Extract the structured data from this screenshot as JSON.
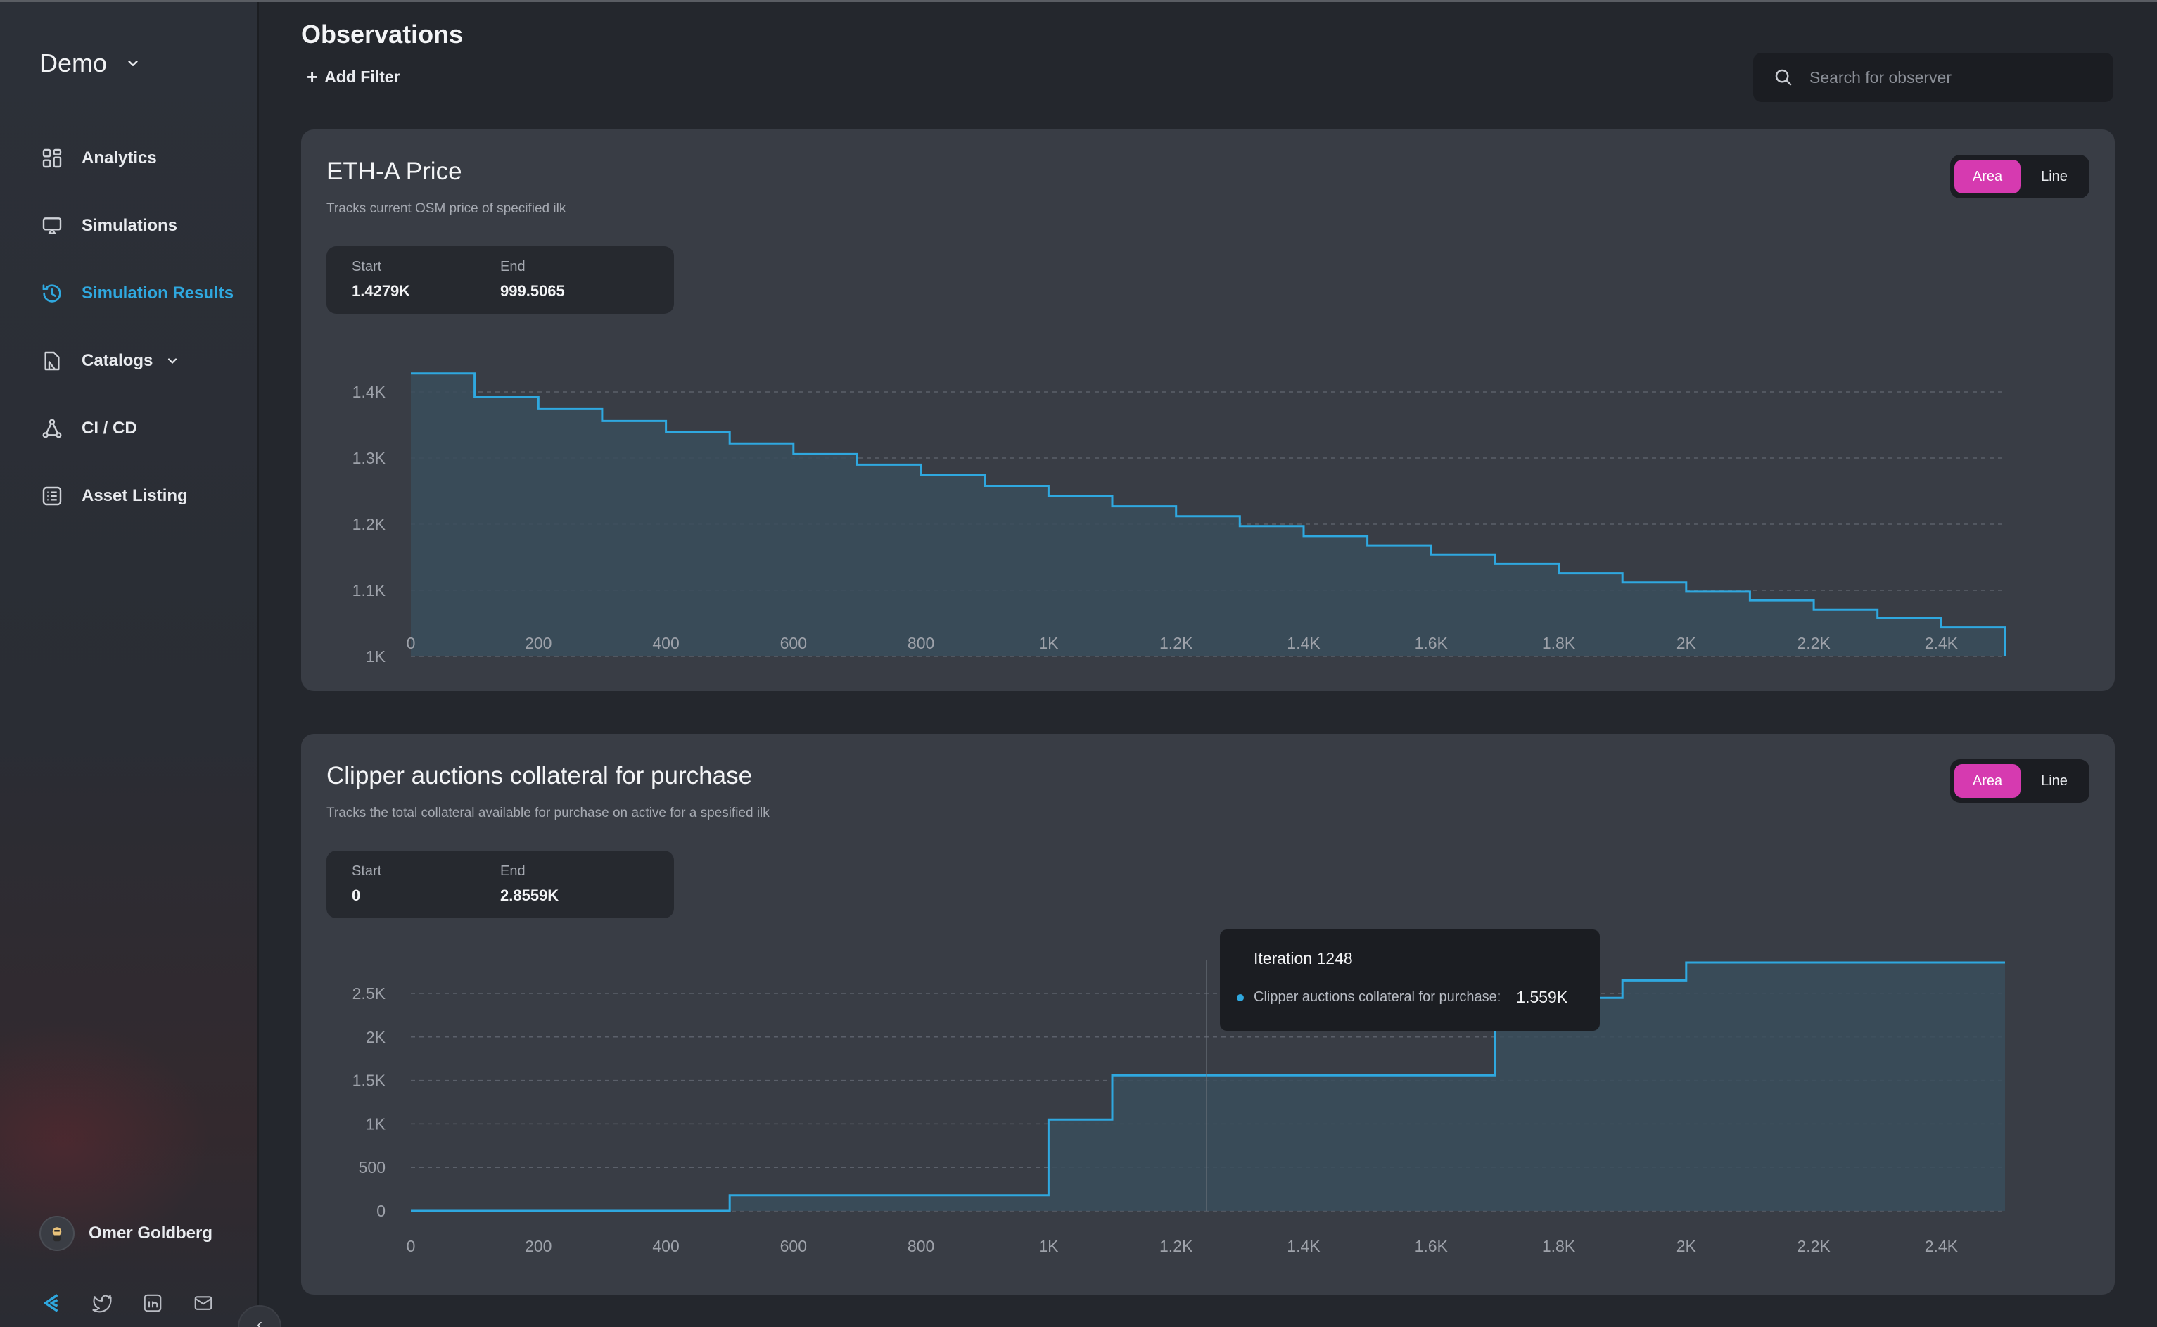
{
  "app": {
    "workspace": "Demo",
    "page_title": "Observations",
    "add_filter": "Add Filter",
    "search_placeholder": "Search for observer"
  },
  "sidebar": {
    "items": [
      {
        "label": "Analytics",
        "icon": "grid-icon"
      },
      {
        "label": "Simulations",
        "icon": "monitor-icon"
      },
      {
        "label": "Simulation Results",
        "icon": "history-icon",
        "active": true
      },
      {
        "label": "Catalogs",
        "icon": "catalog-icon",
        "has_submenu": true
      },
      {
        "label": "CI / CD",
        "icon": "pipeline-icon"
      },
      {
        "label": "Asset Listing",
        "icon": "list-icon"
      }
    ],
    "user": {
      "name": "Omer Goldberg"
    },
    "socials": [
      "logo-icon",
      "twitter-icon",
      "linkedin-icon",
      "mail-icon"
    ],
    "collapse": "‹"
  },
  "colors": {
    "accent": "#2fa8df",
    "toggle_active": "#d63ab0",
    "area_fill": "#3a4d5c"
  },
  "cards": [
    {
      "title": "ETH-A Price",
      "subtitle": "Tracks current OSM price of specified ilk",
      "toggle": {
        "area": "Area",
        "line": "Line",
        "selected": "Area"
      },
      "start_label": "Start",
      "start_value": "1.4279K",
      "end_label": "End",
      "end_value": "999.5065"
    },
    {
      "title": "Clipper auctions collateral for purchase",
      "subtitle": "Tracks the total collateral available for purchase on active for a spesified ilk",
      "toggle": {
        "area": "Area",
        "line": "Line",
        "selected": "Area"
      },
      "start_label": "Start",
      "start_value": "0",
      "end_label": "End",
      "end_value": "2.8559K",
      "tooltip": {
        "title": "Iteration 1248",
        "series": "Clipper auctions collateral for purchase:",
        "value": "1.559K"
      }
    }
  ],
  "chart_data": [
    {
      "type": "area",
      "step": true,
      "title": "ETH-A Price",
      "x_ticks": [
        "0",
        "200",
        "400",
        "600",
        "800",
        "1K",
        "1.2K",
        "1.4K",
        "1.6K",
        "1.8K",
        "2K",
        "2.2K",
        "2.4K"
      ],
      "y_ticks": [
        "1K",
        "1.1K",
        "1.2K",
        "1.3K",
        "1.4K"
      ],
      "y_tick_values": [
        1000,
        1100,
        1200,
        1300,
        1400
      ],
      "xlim": [
        0,
        2500
      ],
      "ylim": [
        1000,
        1450
      ],
      "x": [
        0,
        100,
        200,
        300,
        400,
        500,
        600,
        700,
        800,
        900,
        1000,
        1100,
        1200,
        1300,
        1400,
        1500,
        1600,
        1700,
        1800,
        1900,
        2000,
        2100,
        2200,
        2300,
        2400,
        2500
      ],
      "y": [
        1428,
        1392,
        1374,
        1356,
        1339,
        1322,
        1306,
        1290,
        1274,
        1258,
        1242,
        1227,
        1212,
        1197,
        1182,
        1168,
        1154,
        1140,
        1126,
        1112,
        1098,
        1085,
        1071,
        1058,
        1044,
        1000
      ]
    },
    {
      "type": "area",
      "step": true,
      "title": "Clipper auctions collateral for purchase",
      "x_ticks": [
        "0",
        "200",
        "400",
        "600",
        "800",
        "1K",
        "1.2K",
        "1.4K",
        "1.6K",
        "1.8K",
        "2K",
        "2.2K",
        "2.4K"
      ],
      "y_ticks": [
        "0",
        "500",
        "1K",
        "1.5K",
        "2K",
        "2.5K"
      ],
      "y_tick_values": [
        0,
        500,
        1000,
        1500,
        2000,
        2500
      ],
      "xlim": [
        0,
        2500
      ],
      "ylim": [
        0,
        2880
      ],
      "x": [
        0,
        500,
        1000,
        1100,
        1700,
        1900,
        2000,
        2500
      ],
      "y": [
        0,
        180,
        1050,
        1559,
        2450,
        2650,
        2856,
        2856
      ],
      "hover_x": 1248
    }
  ]
}
